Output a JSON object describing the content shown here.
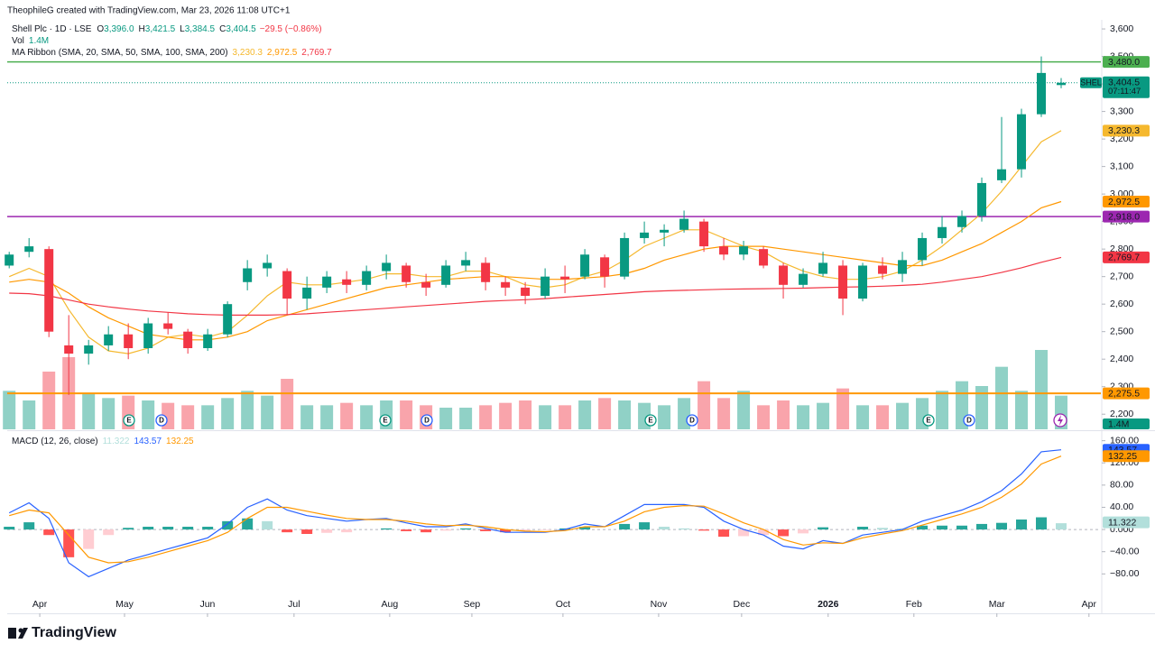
{
  "chart_data": {
    "type": "candlestick",
    "credit": "TheophileG created with TradingView.com, Mar 23, 2026 11:08 UTC+1",
    "title": "Shell Plc · 1D · LSE",
    "ohlc_legend": [
      {
        "key": "O",
        "text": "3,396.0"
      },
      {
        "key": "H",
        "text": "3,421.5"
      },
      {
        "key": "L",
        "text": "3,384.5"
      },
      {
        "key": "C",
        "text": "3,404.5"
      }
    ],
    "change": "−29.5 (−0.86%)",
    "up_color": "#089981",
    "down_color": "#f23645",
    "xlim": [
      -0.1,
      55
    ],
    "xticks": [
      {
        "value": 1.54,
        "label": "Apr"
      },
      {
        "value": 5.81,
        "label": "May"
      },
      {
        "value": 9.99,
        "label": "Jun"
      },
      {
        "value": 14.35,
        "label": "Jul"
      },
      {
        "value": 19.17,
        "label": "Aug"
      },
      {
        "value": 23.31,
        "label": "Sep"
      },
      {
        "value": 27.9,
        "label": "Oct"
      },
      {
        "value": 32.72,
        "label": "Nov"
      },
      {
        "value": 36.9,
        "label": "Dec"
      },
      {
        "value": 41.26,
        "label": "2026"
      },
      {
        "value": 45.58,
        "label": "Feb"
      },
      {
        "value": 49.76,
        "label": "Mar"
      },
      {
        "value": 54.4,
        "label": "Apr"
      }
    ],
    "ylim": [
      2145,
      3633
    ],
    "yticks": [
      {
        "value": 3600,
        "label": "3,600"
      },
      {
        "value": 3500,
        "label": "3,500"
      },
      {
        "value": 3400,
        "label": "3,400"
      },
      {
        "value": 3300,
        "label": "3,300"
      },
      {
        "value": 3200,
        "label": "3,200"
      },
      {
        "value": 3100,
        "label": "3,100"
      },
      {
        "value": 3000,
        "label": "3,000"
      },
      {
        "value": 2900,
        "label": "2,900"
      },
      {
        "value": 2800,
        "label": "2,800"
      },
      {
        "value": 2700,
        "label": "2,700"
      },
      {
        "value": 2600,
        "label": "2,600"
      },
      {
        "value": 2500,
        "label": "2,500"
      },
      {
        "value": 2400,
        "label": "2,400"
      },
      {
        "value": 2300,
        "label": "2,300"
      },
      {
        "value": 2200,
        "label": "2,200"
      }
    ],
    "open": [
      2740,
      2790,
      2800,
      2450,
      2420,
      2450,
      2490,
      2440,
      2530,
      2500,
      2440,
      2490,
      2680,
      2730,
      2720,
      2620,
      2660,
      2690,
      2670,
      2720,
      2740,
      2680,
      2670,
      2740,
      2750,
      2680,
      2660,
      2630,
      2700,
      2700,
      2770,
      2700,
      2840,
      2860,
      2870,
      2900,
      2810,
      2780,
      2800,
      2740,
      2670,
      2710,
      2740,
      2620,
      2740,
      2710,
      2760,
      2840,
      2880,
      2920,
      3050,
      3090,
      3290,
      3396.0
    ],
    "high": [
      2790,
      2840,
      2810,
      2560,
      2470,
      2520,
      2530,
      2550,
      2570,
      2510,
      2510,
      2610,
      2760,
      2780,
      2730,
      2700,
      2720,
      2720,
      2740,
      2780,
      2750,
      2710,
      2760,
      2790,
      2770,
      2700,
      2680,
      2730,
      2740,
      2800,
      2780,
      2860,
      2900,
      2890,
      2940,
      2910,
      2840,
      2830,
      2810,
      2750,
      2730,
      2790,
      2760,
      2750,
      2770,
      2790,
      2860,
      2920,
      2940,
      3060,
      3280,
      3310,
      3500,
      3421.5
    ],
    "low": [
      2730,
      2770,
      2480,
      2270,
      2380,
      2430,
      2400,
      2420,
      2490,
      2420,
      2430,
      2480,
      2650,
      2700,
      2560,
      2580,
      2640,
      2640,
      2650,
      2690,
      2660,
      2630,
      2660,
      2720,
      2650,
      2630,
      2600,
      2620,
      2640,
      2690,
      2660,
      2690,
      2820,
      2810,
      2860,
      2790,
      2760,
      2760,
      2730,
      2620,
      2660,
      2700,
      2560,
      2610,
      2690,
      2680,
      2740,
      2820,
      2860,
      2900,
      3040,
      3060,
      3280,
      3384.5
    ],
    "close": [
      2780,
      2810,
      2500,
      2420,
      2450,
      2490,
      2440,
      2530,
      2510,
      2440,
      2490,
      2600,
      2730,
      2750,
      2620,
      2660,
      2700,
      2670,
      2720,
      2750,
      2680,
      2660,
      2740,
      2760,
      2680,
      2660,
      2630,
      2700,
      2690,
      2780,
      2700,
      2840,
      2860,
      2870,
      2910,
      2810,
      2780,
      2810,
      2740,
      2670,
      2710,
      2750,
      2620,
      2740,
      2710,
      2760,
      2840,
      2880,
      2920,
      3040,
      3090,
      3290,
      3440,
      3404.5
    ],
    "ribbon": {
      "name": "MA Ribbon (SMA, 20, SMA, 50, SMA, 100, SMA, 200)",
      "series": [
        {
          "color": "#f5b82e",
          "label": "3,230.3",
          "values": [
            2700,
            2730,
            2700,
            2580,
            2480,
            2430,
            2420,
            2440,
            2480,
            2490,
            2480,
            2500,
            2560,
            2630,
            2680,
            2670,
            2670,
            2680,
            2690,
            2710,
            2710,
            2700,
            2700,
            2720,
            2720,
            2700,
            2670,
            2660,
            2670,
            2700,
            2720,
            2760,
            2810,
            2840,
            2870,
            2870,
            2840,
            2810,
            2790,
            2750,
            2720,
            2700,
            2690,
            2690,
            2700,
            2720,
            2760,
            2810,
            2870,
            2930,
            3010,
            3100,
            3190,
            3230.3
          ]
        },
        {
          "color": "#ff9800",
          "label": "2,972.5",
          "values": [
            2680,
            2690,
            2680,
            2640,
            2590,
            2550,
            2520,
            2490,
            2480,
            2470,
            2470,
            2480,
            2500,
            2540,
            2560,
            2580,
            2600,
            2620,
            2640,
            2660,
            2670,
            2680,
            2690,
            2695,
            2700,
            2700,
            2695,
            2690,
            2690,
            2695,
            2700,
            2710,
            2730,
            2760,
            2780,
            2800,
            2810,
            2810,
            2810,
            2800,
            2790,
            2780,
            2770,
            2760,
            2750,
            2740,
            2740,
            2760,
            2790,
            2820,
            2860,
            2900,
            2950,
            2972.5
          ]
        },
        {
          "color": "#f23645",
          "label": "2,769.7",
          "values": [
            2640,
            2638,
            2630,
            2615,
            2600,
            2590,
            2582,
            2575,
            2570,
            2565,
            2562,
            2560,
            2560,
            2560,
            2562,
            2565,
            2570,
            2575,
            2580,
            2585,
            2590,
            2595,
            2600,
            2605,
            2610,
            2613,
            2616,
            2620,
            2625,
            2630,
            2635,
            2640,
            2645,
            2648,
            2650,
            2652,
            2654,
            2655,
            2656,
            2657,
            2658,
            2660,
            2662,
            2663,
            2665,
            2668,
            2672,
            2680,
            2690,
            2700,
            2715,
            2732,
            2752,
            2769.7
          ]
        }
      ]
    },
    "volume": {
      "name": "Vol",
      "label": "1.4M",
      "ylim": [
        0,
        4.5
      ],
      "values": [
        1.6,
        1.2,
        2.4,
        3.0,
        1.5,
        1.3,
        1.4,
        1.2,
        1.1,
        1.0,
        1.0,
        1.3,
        1.6,
        1.4,
        2.1,
        1.0,
        1.0,
        1.1,
        1.0,
        1.2,
        1.2,
        1.0,
        0.9,
        0.9,
        1.0,
        1.1,
        1.2,
        1.0,
        1.0,
        1.2,
        1.3,
        1.2,
        1.1,
        1.0,
        1.3,
        2.0,
        1.3,
        1.6,
        1.0,
        1.2,
        1.0,
        1.1,
        1.7,
        1.0,
        1.0,
        1.1,
        1.3,
        1.6,
        2.0,
        1.8,
        2.6,
        1.6,
        3.3,
        1.4
      ]
    },
    "levels": [
      {
        "value": 3480.0,
        "label": "3,480.0",
        "color": "#4caf50"
      },
      {
        "value": 2918.0,
        "label": "2,918.0",
        "color": "#9c27b0"
      },
      {
        "value": 2275.5,
        "label": "2,275.5",
        "color": "#ff9800"
      }
    ],
    "last_price": {
      "value": 3404.5,
      "symbol": "SHEL",
      "label": "3,404.5",
      "countdown": "07:11:47"
    },
    "events": [
      "E",
      "D",
      "E",
      "D",
      "E",
      "D",
      "E",
      "D"
    ],
    "macd": {
      "type": "line",
      "name": "MACD (12, 26, close)",
      "ylim": [
        -151,
        174
      ],
      "yticks": [
        {
          "value": 160,
          "label": "160.00"
        },
        {
          "value": 120,
          "label": "120.00"
        },
        {
          "value": 80,
          "label": "80.00"
        },
        {
          "value": 40,
          "label": "40.00"
        },
        {
          "value": 0,
          "label": "0.000"
        },
        {
          "value": -40,
          "label": "−40.00"
        },
        {
          "value": -80,
          "label": "−80.00"
        }
      ],
      "series": [
        {
          "color": "#2962ff",
          "label": "143.57",
          "values": [
            30,
            48,
            20,
            -60,
            -85,
            -70,
            -55,
            -45,
            -35,
            -25,
            -15,
            10,
            40,
            55,
            35,
            25,
            20,
            15,
            18,
            20,
            12,
            5,
            5,
            10,
            2,
            -5,
            -5,
            -5,
            0,
            10,
            5,
            25,
            45,
            45,
            45,
            40,
            15,
            0,
            -10,
            -30,
            -35,
            -20,
            -25,
            -10,
            -5,
            0,
            15,
            25,
            35,
            50,
            70,
            100,
            140,
            143.57
          ]
        },
        {
          "color": "#ff9800",
          "label": "132.25",
          "values": [
            25,
            35,
            30,
            -10,
            -50,
            -60,
            -58,
            -50,
            -40,
            -30,
            -20,
            -5,
            20,
            40,
            40,
            33,
            26,
            20,
            18,
            18,
            15,
            10,
            7,
            8,
            5,
            0,
            -3,
            -4,
            -2,
            5,
            5,
            15,
            32,
            40,
            43,
            42,
            28,
            12,
            0,
            -18,
            -28,
            -24,
            -25,
            -15,
            -8,
            -2,
            8,
            18,
            28,
            40,
            58,
            82,
            118,
            132.25
          ]
        }
      ],
      "histogram": {
        "label": "11.322",
        "colors": [
          "#26a69a",
          "#b2dfdb",
          "#ff5252",
          "#ffcdd2"
        ],
        "values": [
          5,
          13,
          -10,
          -50,
          -35,
          -10,
          3,
          5,
          5,
          5,
          5,
          15,
          20,
          15,
          -5,
          -8,
          -6,
          -5,
          0,
          2,
          -3,
          -5,
          -2,
          2,
          -3,
          -5,
          -2,
          -1,
          2,
          5,
          0,
          10,
          13,
          5,
          2,
          -2,
          -13,
          -12,
          -10,
          -12,
          -7,
          4,
          0,
          5,
          3,
          2,
          7,
          7,
          7,
          10,
          12,
          18,
          22,
          11.322
        ]
      }
    },
    "brand": "TradingView"
  }
}
